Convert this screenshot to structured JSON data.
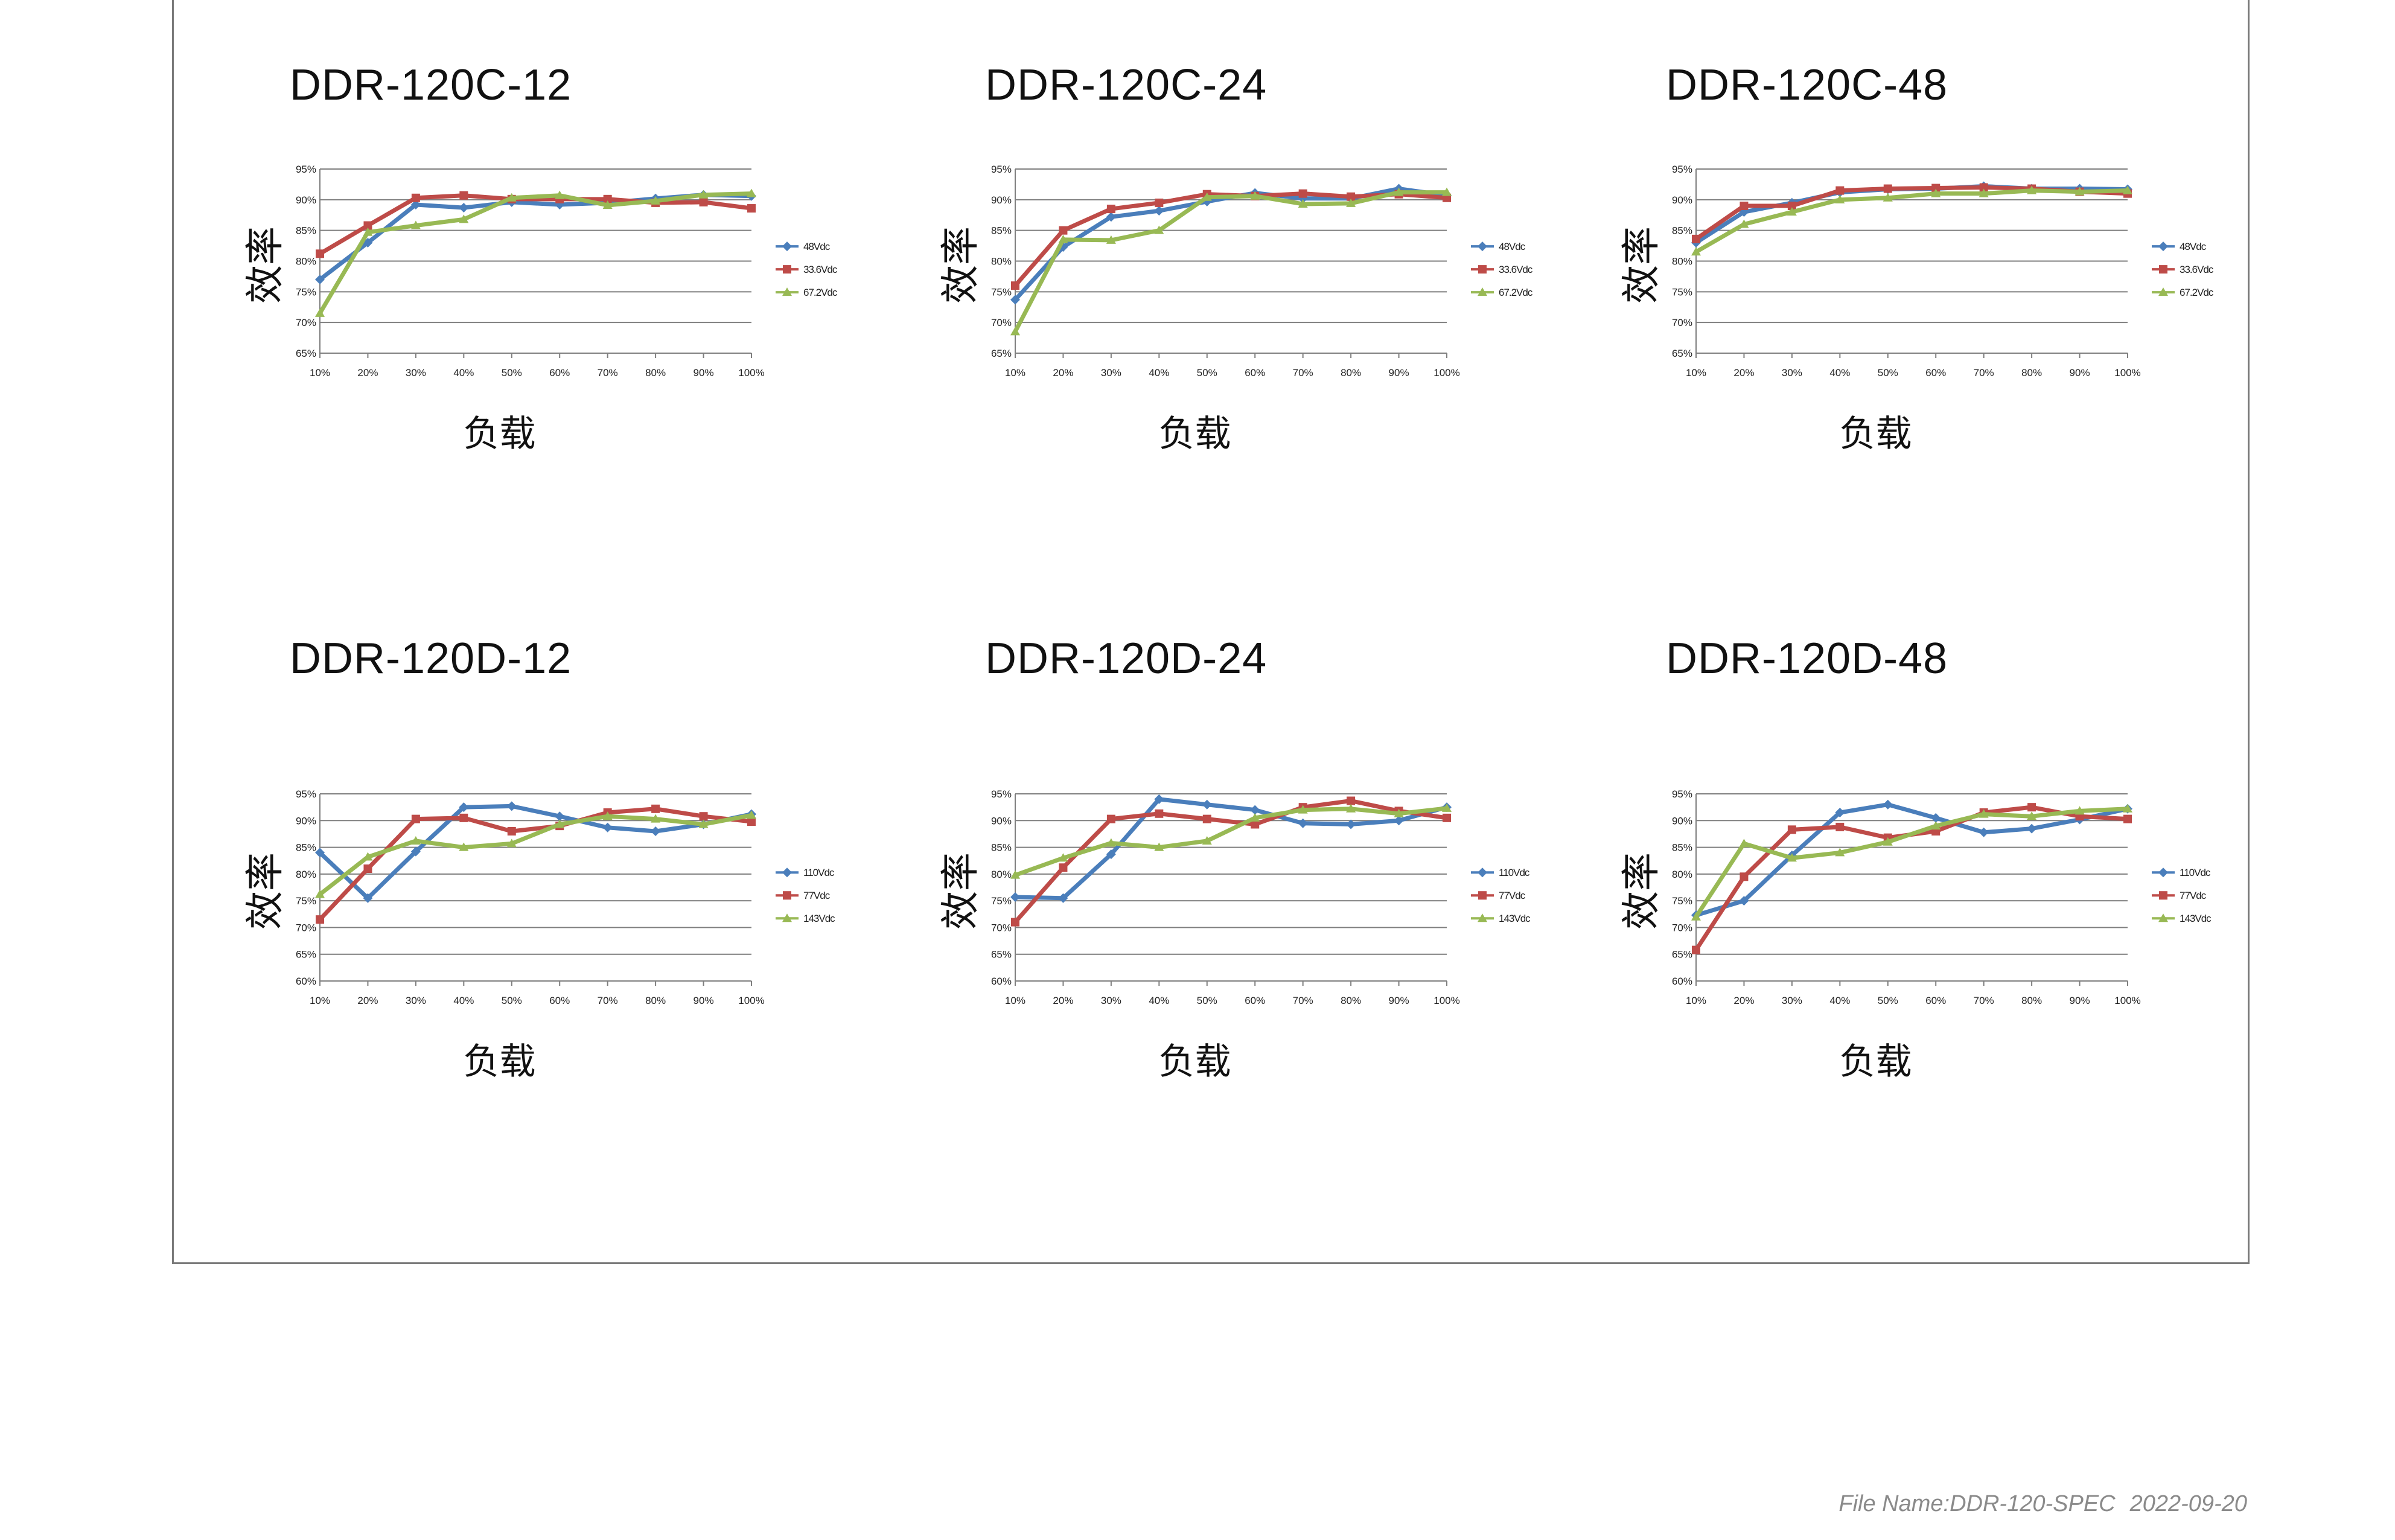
{
  "footer": {
    "file_name": "File Name:DDR-120-SPEC",
    "date": "2022-09-20"
  },
  "y_axis_label": "效率",
  "x_axis_label": "负载",
  "colors": {
    "series1": "#4a7ebb",
    "series2": "#be4b48",
    "series3": "#98b954",
    "grid": "#7f7f7f"
  },
  "chart_data": [
    {
      "type": "line",
      "title": "DDR-120C-12",
      "xlabel": "负载",
      "ylabel": "效率",
      "categories": [
        "10%",
        "20%",
        "30%",
        "40%",
        "50%",
        "60%",
        "70%",
        "80%",
        "90%",
        "100%"
      ],
      "y_ticks": [
        "65%",
        "70%",
        "75%",
        "80%",
        "85%",
        "90%",
        "95%"
      ],
      "ylim": [
        65,
        95
      ],
      "legend_position": "right",
      "series": [
        {
          "name": "48Vdc",
          "marker": "diamond",
          "values": [
            77,
            83,
            89.2,
            88.7,
            89.6,
            89.2,
            89.5,
            90.2,
            90.8,
            90.6
          ]
        },
        {
          "name": "33.6Vdc",
          "marker": "square",
          "values": [
            81.2,
            85.8,
            90.3,
            90.7,
            90.1,
            90.1,
            90.1,
            89.5,
            89.6,
            88.6
          ]
        },
        {
          "name": "67.2Vdc",
          "marker": "triangle",
          "values": [
            71.5,
            84.7,
            85.8,
            86.8,
            90.3,
            90.7,
            89.1,
            89.8,
            90.8,
            91
          ]
        }
      ]
    },
    {
      "type": "line",
      "title": "DDR-120C-24",
      "xlabel": "负载",
      "ylabel": "效率",
      "categories": [
        "10%",
        "20%",
        "30%",
        "40%",
        "50%",
        "60%",
        "70%",
        "80%",
        "90%",
        "100%"
      ],
      "y_ticks": [
        "65%",
        "70%",
        "75%",
        "80%",
        "85%",
        "90%",
        "95%"
      ],
      "ylim": [
        65,
        95
      ],
      "legend_position": "right",
      "series": [
        {
          "name": "48Vdc",
          "marker": "diamond",
          "values": [
            73.7,
            82.3,
            87.2,
            88.2,
            89.7,
            91.1,
            90.2,
            90.2,
            91.8,
            90.7
          ]
        },
        {
          "name": "33.6Vdc",
          "marker": "square",
          "values": [
            76,
            85,
            88.5,
            89.5,
            90.9,
            90.6,
            91,
            90.5,
            90.9,
            90.3
          ]
        },
        {
          "name": "67.2Vdc",
          "marker": "triangle",
          "values": [
            68.5,
            83.5,
            83.4,
            85,
            90.4,
            90.6,
            89.3,
            89.4,
            91.2,
            91.2
          ]
        }
      ]
    },
    {
      "type": "line",
      "title": "DDR-120C-48",
      "xlabel": "负载",
      "ylabel": "效率",
      "categories": [
        "10%",
        "20%",
        "30%",
        "40%",
        "50%",
        "60%",
        "70%",
        "80%",
        "90%",
        "100%"
      ],
      "y_ticks": [
        "65%",
        "70%",
        "75%",
        "80%",
        "85%",
        "90%",
        "95%"
      ],
      "ylim": [
        65,
        95
      ],
      "legend_position": "right",
      "series": [
        {
          "name": "48Vdc",
          "marker": "diamond",
          "values": [
            83,
            88,
            89.5,
            91.2,
            91.7,
            91.8,
            92.2,
            91.8,
            91.8,
            91.7
          ]
        },
        {
          "name": "33.6Vdc",
          "marker": "square",
          "values": [
            83.6,
            89,
            89,
            91.5,
            91.8,
            91.9,
            92,
            91.8,
            91.3,
            91
          ]
        },
        {
          "name": "67.2Vdc",
          "marker": "triangle",
          "values": [
            81.5,
            86,
            88,
            90,
            90.3,
            91,
            91,
            91.5,
            91.3,
            91.5
          ]
        }
      ]
    },
    {
      "type": "line",
      "title": "DDR-120D-12",
      "xlabel": "负载",
      "ylabel": "效率",
      "categories": [
        "10%",
        "20%",
        "30%",
        "40%",
        "50%",
        "60%",
        "70%",
        "80%",
        "90%",
        "100%"
      ],
      "y_ticks": [
        "60%",
        "65%",
        "70%",
        "75%",
        "80%",
        "85%",
        "90%",
        "95%"
      ],
      "ylim": [
        60,
        95
      ],
      "legend_position": "right",
      "series": [
        {
          "name": "110Vdc",
          "marker": "diamond",
          "values": [
            84,
            75.5,
            84.2,
            92.5,
            92.7,
            90.8,
            88.7,
            88,
            89.3,
            91.2
          ]
        },
        {
          "name": "77Vdc",
          "marker": "square",
          "values": [
            71.5,
            81,
            90.3,
            90.5,
            88,
            89,
            91.5,
            92.2,
            90.8,
            89.8
          ]
        },
        {
          "name": "143Vdc",
          "marker": "triangle",
          "values": [
            76.2,
            83.2,
            86.2,
            85,
            85.7,
            89.3,
            90.8,
            90.3,
            89.3,
            91
          ]
        }
      ]
    },
    {
      "type": "line",
      "title": "DDR-120D-24",
      "xlabel": "负载",
      "ylabel": "效率",
      "categories": [
        "10%",
        "20%",
        "30%",
        "40%",
        "50%",
        "60%",
        "70%",
        "80%",
        "90%",
        "100%"
      ],
      "y_ticks": [
        "60%",
        "65%",
        "70%",
        "75%",
        "80%",
        "85%",
        "90%",
        "95%"
      ],
      "ylim": [
        60,
        95
      ],
      "legend_position": "right",
      "series": [
        {
          "name": "110Vdc",
          "marker": "diamond",
          "values": [
            75.7,
            75.5,
            83.7,
            94,
            93,
            92,
            89.5,
            89.3,
            90,
            92.5
          ]
        },
        {
          "name": "77Vdc",
          "marker": "square",
          "values": [
            71,
            81.2,
            90.3,
            91.3,
            90.3,
            89.3,
            92.5,
            93.7,
            91.8,
            90.5
          ]
        },
        {
          "name": "143Vdc",
          "marker": "triangle",
          "values": [
            79.8,
            83,
            85.8,
            85,
            86.2,
            90.5,
            92,
            92.2,
            91.3,
            92.3
          ]
        }
      ]
    },
    {
      "type": "line",
      "title": "DDR-120D-48",
      "xlabel": "负载",
      "ylabel": "效率",
      "categories": [
        "10%",
        "20%",
        "30%",
        "40%",
        "50%",
        "60%",
        "70%",
        "80%",
        "90%",
        "100%"
      ],
      "y_ticks": [
        "60%",
        "65%",
        "70%",
        "75%",
        "80%",
        "85%",
        "90%",
        "95%"
      ],
      "ylim": [
        60,
        95
      ],
      "legend_position": "right",
      "series": [
        {
          "name": "110Vdc",
          "marker": "diamond",
          "values": [
            72.3,
            75,
            83.5,
            91.5,
            93,
            90.5,
            87.8,
            88.5,
            90.2,
            92.2
          ]
        },
        {
          "name": "77Vdc",
          "marker": "square",
          "values": [
            65.8,
            79.5,
            88.3,
            88.8,
            86.8,
            88,
            91.5,
            92.5,
            90.8,
            90.3
          ]
        },
        {
          "name": "143Vdc",
          "marker": "triangle",
          "values": [
            72,
            85.7,
            83,
            84,
            86,
            89,
            91.2,
            90.8,
            91.8,
            92.2
          ]
        }
      ]
    }
  ]
}
